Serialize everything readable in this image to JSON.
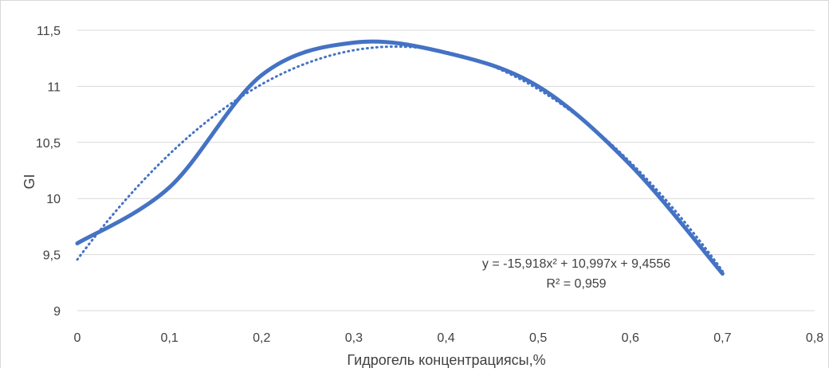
{
  "chart_data": {
    "type": "line",
    "title": "",
    "xlabel": "Гидрогель концентрациясы,%",
    "ylabel": "GI",
    "xlim": [
      0,
      0.8
    ],
    "ylim": [
      9,
      11.5
    ],
    "x_ticks": [
      0,
      0.1,
      0.2,
      0.3,
      0.4,
      0.5,
      0.6,
      0.7,
      0.8
    ],
    "x_tick_labels": [
      "0",
      "0,1",
      "0,2",
      "0,3",
      "0,4",
      "0,5",
      "0,6",
      "0,7",
      "0,8"
    ],
    "y_ticks": [
      9,
      9.5,
      10,
      10.5,
      11,
      11.5
    ],
    "y_tick_labels": [
      "9",
      "9,5",
      "10",
      "10,5",
      "11",
      "11,5"
    ],
    "grid": "horizontal",
    "series": [
      {
        "style": "smooth-solid",
        "color": "#4472C4",
        "x": [
          0,
          0.1,
          0.2,
          0.3,
          0.4,
          0.5,
          0.6,
          0.7
        ],
        "y": [
          9.6,
          10.1,
          11.1,
          11.39,
          11.3,
          11.0,
          10.3,
          9.33
        ]
      }
    ],
    "trendline": {
      "type": "polynomial-2",
      "style": "dotted",
      "color": "#4472C4",
      "coefficients": {
        "a": -15.918,
        "b": 10.997,
        "c": 9.4556
      },
      "x_range": [
        0,
        0.7
      ],
      "equation_label": "y = -15,918x² + 10,997x + 9,4556",
      "r2_label": "R² = 0,959"
    }
  }
}
